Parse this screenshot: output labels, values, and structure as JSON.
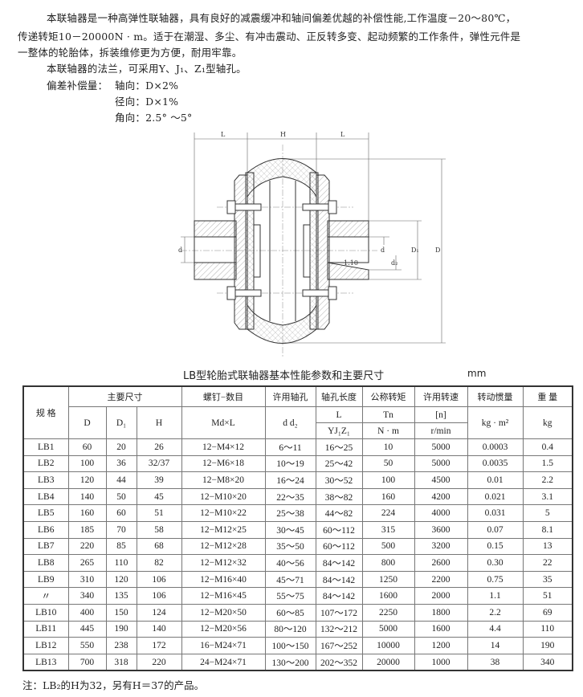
{
  "intro": {
    "p1_line1": "本联轴器是一种高弹性联轴器，具有良好的减震缓冲和轴间偏差优越的补偿性能,工作温度－20～80℃，",
    "p1_line2": "传递转矩10－20000N · m。适于在潮湿、多尘、有冲击震动、正反转多变、起动频繁的工作条件，弹性元件是",
    "p1_line3": "一整体的轮胎体，拆装维修更为方便，耐用牢靠。",
    "p2": "本联轴器的法兰，可采用Y、J₁、Z₁型轴孔。",
    "comp_label": "偏差补偿量：",
    "comp_axial": "轴向：D×2%",
    "comp_radial": "径向：D×1%",
    "comp_angular": "角向：2.5° ～5°"
  },
  "drawing": {
    "labels": {
      "L_left": "L",
      "H": "H",
      "L_right": "L",
      "d_left": "d",
      "d_right": "d",
      "d2": "d₂",
      "D1": "D₁",
      "D": "D",
      "taper": "1:10"
    }
  },
  "table": {
    "title": "LB型轮胎式联轴器基本性能参数和主要尺寸",
    "unit": "mm",
    "headers": {
      "spec": "规  格",
      "main_dims": "主要尺寸",
      "bolts": "螺钉−数目",
      "bore": "许用轴孔",
      "bore_len": "轴孔长度",
      "torque": "公称转矩",
      "speed": "许用转速",
      "inertia": "转动惯量",
      "weight": "重  量",
      "D": "D",
      "D1": "D₁",
      "H": "H",
      "MdL": "Md×L",
      "dd2": "d  d₂",
      "L": "L",
      "Tn": "Tn",
      "n": "[n]",
      "inertia_unit": "kg · m²",
      "weight_unit": "kg",
      "YJZ": "YJ₁Z₁",
      "Nm": "N · m",
      "rmin": "r/min"
    },
    "rows": [
      [
        "LB1",
        "60",
        "20",
        "26",
        "12−M4×12",
        "6～11",
        "16～25",
        "10",
        "5000",
        "0.0003",
        "0.4"
      ],
      [
        "LB2",
        "100",
        "36",
        "32/37",
        "12−M6×18",
        "10～19",
        "25～42",
        "50",
        "5000",
        "0.0035",
        "1.5"
      ],
      [
        "LB3",
        "120",
        "44",
        "39",
        "12−M8×20",
        "16～24",
        "30～52",
        "100",
        "4500",
        "0.01",
        "2.2"
      ],
      [
        "LB4",
        "140",
        "50",
        "45",
        "12−M10×20",
        "22～35",
        "38～82",
        "160",
        "4200",
        "0.021",
        "3.1"
      ],
      [
        "LB5",
        "160",
        "60",
        "51",
        "12−M10×22",
        "25～38",
        "44～82",
        "224",
        "4000",
        "0.031",
        "5"
      ],
      [
        "LB6",
        "185",
        "70",
        "58",
        "12−M12×25",
        "30～45",
        "60～112",
        "315",
        "3600",
        "0.07",
        "8.1"
      ],
      [
        "LB7",
        "220",
        "85",
        "68",
        "12−M12×28",
        "35～50",
        "60～112",
        "500",
        "3200",
        "0.15",
        "13"
      ],
      [
        "LB8",
        "265",
        "110",
        "82",
        "12−M12×32",
        "40～56",
        "84～142",
        "800",
        "2600",
        "0.30",
        "22"
      ],
      [
        "LB9",
        "310",
        "120",
        "106",
        "12−M16×40",
        "45～71",
        "84～142",
        "1250",
        "2200",
        "0.75",
        "35"
      ],
      [
        "〃",
        "340",
        "135",
        "106",
        "12−M16×45",
        "55～75",
        "84～142",
        "1600",
        "2000",
        "1.1",
        "51"
      ],
      [
        "LB10",
        "400",
        "150",
        "124",
        "12−M20×50",
        "60～85",
        "107～172",
        "2250",
        "1800",
        "2.2",
        "69"
      ],
      [
        "LB11",
        "445",
        "190",
        "140",
        "12−M20×56",
        "80～120",
        "132～212",
        "5000",
        "1600",
        "4.4",
        "110"
      ],
      [
        "LB12",
        "550",
        "238",
        "172",
        "16−M24×71",
        "100～150",
        "167～252",
        "10000",
        "1200",
        "14",
        "190"
      ],
      [
        "LB13",
        "700",
        "318",
        "220",
        "24−M24×71",
        "130～200",
        "202～352",
        "20000",
        "1000",
        "38",
        "340"
      ]
    ]
  },
  "note": "注：LB₂的H为32，另有H＝37的产品。"
}
